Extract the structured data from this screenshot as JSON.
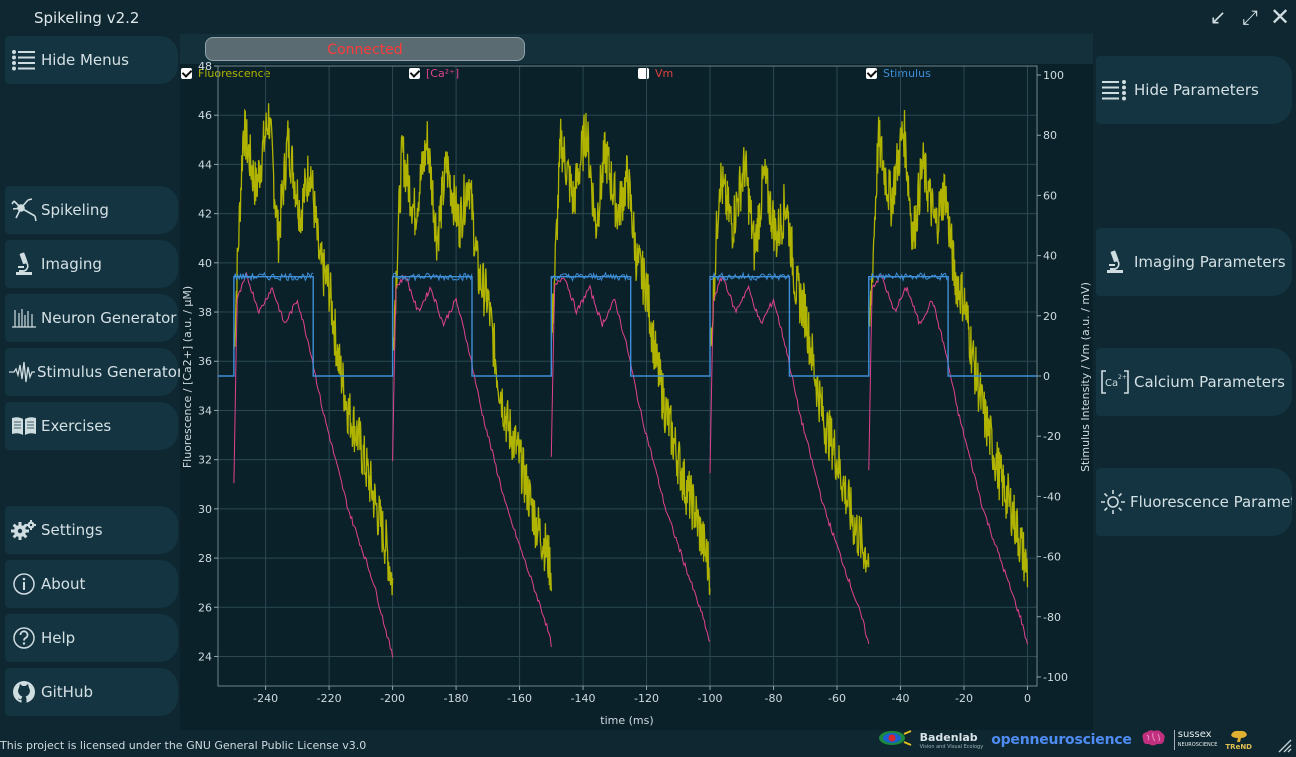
{
  "window": {
    "title": "Spikeling v2.2",
    "minimize_glyph": "↙",
    "maximize_glyph": "⤢",
    "close_glyph": "✕"
  },
  "menu": {
    "hide_menus": "Hide Menus",
    "items": [
      {
        "label": "Spikeling",
        "icon": "neuron-icon"
      },
      {
        "label": "Imaging",
        "icon": "microscope-icon"
      },
      {
        "label": "Neuron Generator",
        "icon": "spike-train-icon"
      },
      {
        "label": "Stimulus Generator",
        "icon": "waveform-icon"
      },
      {
        "label": "Exercises",
        "icon": "book-icon"
      }
    ],
    "bottom_items": [
      {
        "label": "Settings",
        "icon": "gear-icon"
      },
      {
        "label": "About",
        "icon": "info-icon"
      },
      {
        "label": "Help",
        "icon": "help-icon"
      },
      {
        "label": "GitHub",
        "icon": "github-icon"
      }
    ]
  },
  "parameters": {
    "hide": "Hide Parameters",
    "imaging": "Imaging Parameters",
    "calcium": "Calcium Parameters",
    "fluorescence": "Fluorescence Parameters"
  },
  "status": {
    "text": "Connected",
    "color": "#ff3a3a"
  },
  "legend": [
    {
      "label": "Fluorescence",
      "checked": true,
      "color": "#b0b400"
    },
    {
      "label": "[Ca²⁺]",
      "checked": true,
      "color": "#e0428e"
    },
    {
      "label": "Vm",
      "checked": false,
      "color": "#e04040"
    },
    {
      "label": "Stimulus",
      "checked": true,
      "color": "#3e8fd8"
    }
  ],
  "chart_data": {
    "type": "line",
    "xlabel": "time (ms)",
    "ylabel_left": "Fluorescence / [Ca2+] (a.u. / µM)",
    "ylabel_right": "Stimulus Intensity / Vm (a.u. / mV)",
    "xlim": [
      -255,
      3
    ],
    "ylim_left": [
      22.8,
      48
    ],
    "ylim_right": [
      -103,
      103
    ],
    "x_ticks": [
      -240,
      -220,
      -200,
      -180,
      -160,
      -140,
      -120,
      -100,
      -80,
      -60,
      -40,
      -20,
      0
    ],
    "y_ticks_left": [
      24,
      26,
      28,
      30,
      32,
      34,
      36,
      38,
      40,
      42,
      44,
      46,
      48
    ],
    "y_ticks_right": [
      -100,
      -80,
      -60,
      -40,
      -20,
      0,
      20,
      40,
      60,
      80,
      100
    ],
    "grid": true,
    "series": [
      {
        "name": "Fluorescence",
        "axis": "left",
        "color": "#b0b400",
        "cycles": [
          {
            "x": [
              -250,
              -247,
              -243,
              -239,
              -236,
              -233,
              -229,
              -226,
              -223,
              -220,
              -217,
              -214,
              -211,
              -208,
              -205,
              -202,
              -200
            ],
            "y": [
              36.5,
              45.5,
              43,
              46,
              41,
              45,
              42,
              44,
              40,
              39,
              36,
              34,
              33,
              31.5,
              30,
              28.5,
              27
            ]
          },
          {
            "x": [
              -200,
              -197,
              -193,
              -189,
              -186,
              -183,
              -179,
              -176,
              -173,
              -170,
              -167,
              -164,
              -161,
              -158,
              -155,
              -152,
              -150
            ],
            "y": [
              36.5,
              44.5,
              42,
              45,
              41,
              44,
              41.5,
              43.5,
              39.5,
              38.5,
              35.5,
              33.5,
              32.5,
              31,
              29.5,
              28.5,
              27.5
            ]
          },
          {
            "x": [
              -150,
              -147,
              -143,
              -139,
              -136,
              -133,
              -129,
              -126,
              -123,
              -120,
              -117,
              -114,
              -111,
              -108,
              -105,
              -102,
              -100
            ],
            "y": [
              36.5,
              45,
              42.5,
              45.5,
              41.5,
              44.5,
              42,
              43.5,
              40,
              39,
              36,
              34,
              32.5,
              31,
              30,
              28.5,
              27.5
            ]
          },
          {
            "x": [
              -100,
              -97,
              -93,
              -89,
              -86,
              -83,
              -79,
              -76,
              -73,
              -70,
              -67,
              -64,
              -61,
              -58,
              -55,
              -52,
              -50
            ],
            "y": [
              36,
              43.5,
              41.5,
              44,
              40.5,
              43.5,
              41,
              42.5,
              39,
              38,
              35.5,
              33.5,
              32.5,
              31,
              29.5,
              28.5,
              28
            ]
          },
          {
            "x": [
              -50,
              -47,
              -43,
              -39,
              -36,
              -33,
              -29,
              -26,
              -23,
              -20,
              -17,
              -14,
              -11,
              -8,
              -5,
              -2,
              0
            ],
            "y": [
              36.5,
              45,
              42.5,
              45.5,
              41,
              44,
              41.5,
              43,
              39.5,
              38.5,
              36,
              34,
              32.5,
              31,
              30,
              28.5,
              27.5
            ]
          }
        ]
      },
      {
        "name": "[Ca²⁺]",
        "axis": "left",
        "color": "#e0428e",
        "cycles": [
          {
            "x": [
              -250,
              -249,
              -246,
              -242,
              -238,
              -234,
              -230,
              -226,
              -222,
              -218,
              -214,
              -210,
              -206,
              -202,
              -200
            ],
            "y": [
              31,
              38.5,
              39.5,
              38,
              39,
              37.5,
              38.5,
              36.5,
              34,
              32,
              30,
              28.5,
              27,
              25,
              24
            ]
          },
          {
            "x": [
              -200,
              -199,
              -196,
              -192,
              -188,
              -184,
              -180,
              -176,
              -172,
              -168,
              -164,
              -160,
              -156,
              -152,
              -150
            ],
            "y": [
              32,
              39,
              39.5,
              38,
              39,
              37.5,
              38.5,
              36.5,
              34,
              32,
              30,
              28.5,
              27,
              25.5,
              24.5
            ]
          },
          {
            "x": [
              -150,
              -149,
              -146,
              -142,
              -138,
              -134,
              -130,
              -126,
              -122,
              -118,
              -114,
              -110,
              -106,
              -102,
              -100
            ],
            "y": [
              32,
              39,
              39.5,
              38,
              39,
              37.5,
              38.5,
              36.5,
              34,
              32,
              30,
              28.5,
              27,
              25.5,
              24.5
            ]
          },
          {
            "x": [
              -100,
              -99,
              -96,
              -92,
              -88,
              -84,
              -80,
              -76,
              -72,
              -68,
              -64,
              -60,
              -56,
              -52,
              -50
            ],
            "y": [
              31.5,
              38.5,
              39.5,
              38,
              39,
              37.5,
              38.5,
              36.5,
              34,
              32,
              30,
              28.5,
              27,
              25.5,
              24.5
            ]
          },
          {
            "x": [
              -50,
              -49,
              -46,
              -42,
              -38,
              -34,
              -30,
              -26,
              -22,
              -18,
              -14,
              -10,
              -6,
              -2,
              0
            ],
            "y": [
              31.5,
              39,
              39.5,
              38,
              39,
              37.5,
              38.5,
              36.5,
              34,
              32,
              30,
              28.5,
              27,
              25.5,
              24.5
            ]
          }
        ]
      },
      {
        "name": "Stimulus",
        "axis": "right",
        "color": "#3e8fd8",
        "x": [
          -255,
          -250,
          -250,
          -225,
          -225,
          -200,
          -200,
          -175,
          -175,
          -150,
          -150,
          -125,
          -125,
          -100,
          -100,
          -75,
          -75,
          -50,
          -50,
          -25,
          -25,
          3
        ],
        "y": [
          0,
          0,
          33,
          33,
          0,
          0,
          33,
          33,
          0,
          0,
          33,
          33,
          0,
          0,
          33,
          33,
          0,
          0,
          33,
          33,
          0,
          0
        ]
      }
    ]
  },
  "footer": {
    "license": "This project is licensed under the GNU General Public License v3.0",
    "logo_badenlab": "Badenlab",
    "logo_badenlab_sub": "Vision and Visual Ecology",
    "logo_one": "openneuroscience",
    "logo_sussex": "sussex",
    "logo_sussex_sub": "NEUROSCIENCE",
    "logo_trend": "TReND"
  }
}
